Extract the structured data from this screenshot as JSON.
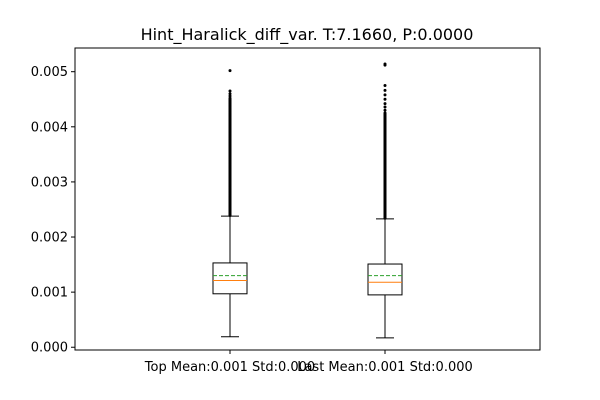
{
  "chart_data": {
    "type": "box",
    "title": "Hint_Haralick_diff_var. T:7.1660, P:0.0000",
    "categories": [
      "Top Mean:0.001 Std:0.000",
      "Last Mean:0.001 Std:0.000"
    ],
    "ylim": [
      -5e-05,
      0.00543
    ],
    "yticks": [
      0.0,
      0.001,
      0.002,
      0.003,
      0.004,
      0.005
    ],
    "ytick_labels": [
      "0.000",
      "0.001",
      "0.002",
      "0.003",
      "0.004",
      "0.005"
    ],
    "grid": false,
    "series": [
      {
        "whisker_low": 0.00019,
        "q1": 0.00097,
        "median": 0.00121,
        "mean": 0.0013,
        "q3": 0.00153,
        "whisker_high": 0.00238,
        "outlier_range": [
          0.00239,
          0.00452
        ],
        "outliers_sparse": [
          0.00456,
          0.0046,
          0.00465,
          0.00502
        ]
      },
      {
        "whisker_low": 0.00017,
        "q1": 0.00095,
        "median": 0.00118,
        "mean": 0.0013,
        "q3": 0.00151,
        "whisker_high": 0.00233,
        "outlier_range": [
          0.00234,
          0.00425
        ],
        "outliers_sparse": [
          0.0043,
          0.00436,
          0.00442,
          0.0045,
          0.00458,
          0.00466,
          0.00475,
          0.00512,
          0.00514
        ]
      }
    ],
    "colors": {
      "box": "#000000",
      "median": "#ff7f0e",
      "mean": "#2ca02c",
      "outlier": "#000000"
    }
  }
}
